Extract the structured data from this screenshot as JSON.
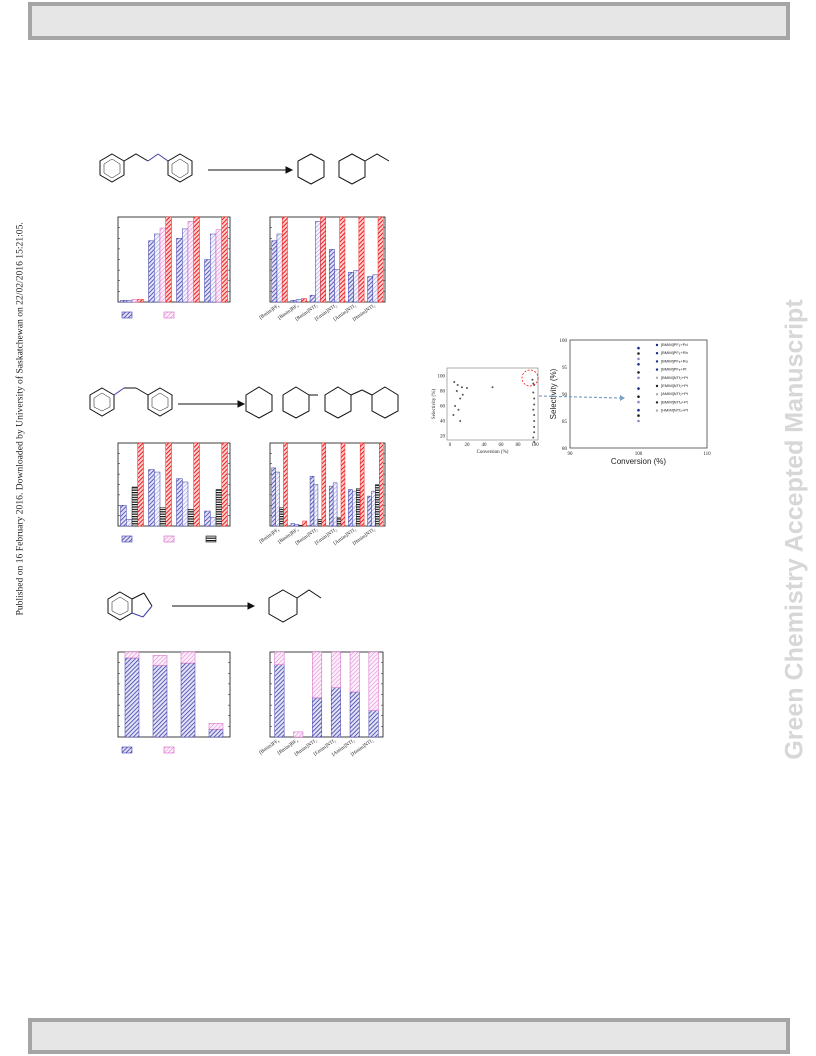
{
  "side_note": "Published on 16 February 2016. Downloaded by University of Saskatchewan on 22/02/2016 15:21:05.",
  "watermark": "Green Chemistry Accepted Manuscript",
  "colors": {
    "blue": "#3c3caa",
    "pink": "#f0a8e0",
    "red": "#ee1c1c",
    "black": "#111111"
  },
  "chart_data": [
    {
      "type": "bar",
      "panel": "a-left",
      "groups": 4,
      "series": [
        {
          "pattern": "blue",
          "values": [
            2,
            72,
            75,
            50
          ]
        },
        {
          "pattern": "blue-light",
          "values": [
            2,
            80,
            86,
            80
          ]
        },
        {
          "pattern": "pink",
          "values": [
            3,
            87,
            95,
            85
          ]
        },
        {
          "pattern": "red",
          "values": [
            3,
            100,
            100,
            100
          ]
        }
      ]
    },
    {
      "type": "bar",
      "panel": "a-right",
      "categories": [
        "[Bmim]PF₆",
        "[Bmim]BF₄",
        "[Bmim]NTf₂",
        "[Emim]NTf₂",
        "[Amim]NTf₂",
        "[Hmim]NTf₂"
      ],
      "series": [
        {
          "pattern": "blue",
          "values": [
            72,
            2,
            8,
            62,
            35,
            30
          ]
        },
        {
          "pattern": "blue-light",
          "values": [
            80,
            3,
            95,
            38,
            37,
            32
          ]
        },
        {
          "pattern": "red",
          "values": [
            100,
            4,
            100,
            100,
            100,
            100
          ]
        }
      ]
    },
    {
      "type": "bar",
      "panel": "b-left",
      "groups": 4,
      "series": [
        {
          "pattern": "blue",
          "values": [
            25,
            68,
            57,
            18
          ]
        },
        {
          "pattern": "blue-light",
          "values": [
            8,
            65,
            53,
            10
          ]
        },
        {
          "pattern": "black",
          "values": [
            47,
            22,
            20,
            44
          ]
        },
        {
          "pattern": "red",
          "values": [
            100,
            100,
            100,
            100
          ]
        }
      ]
    },
    {
      "type": "bar",
      "panel": "b-right",
      "categories": [
        "[Bmim]PF₆",
        "[Bmim]BF₄",
        "[Bmim]NTf₂",
        "[Emim]NTf₂",
        "[Amim]NTf₂",
        "[Hmim]NTf₂"
      ],
      "series": [
        {
          "pattern": "blue",
          "values": [
            70,
            3,
            60,
            48,
            44,
            36
          ]
        },
        {
          "pattern": "blue-light",
          "values": [
            65,
            2,
            50,
            52,
            42,
            42
          ]
        },
        {
          "pattern": "black",
          "values": [
            22,
            1,
            8,
            10,
            45,
            50
          ]
        },
        {
          "pattern": "red",
          "values": [
            100,
            6,
            100,
            100,
            100,
            100
          ]
        }
      ]
    },
    {
      "type": "bar",
      "panel": "c-left",
      "groups": 4,
      "stacked": true,
      "series": [
        {
          "pattern": "blue",
          "values": [
            93,
            84,
            87,
            9
          ]
        },
        {
          "pattern": "pink",
          "values": [
            7,
            12,
            13,
            7
          ]
        }
      ]
    },
    {
      "type": "bar",
      "panel": "c-right",
      "stacked": true,
      "categories": [
        "[Bmim]PF₆",
        "[Bmim]BF₄",
        "[Bmim]NTf₂",
        "[Emim]NTf₂",
        "[Amim]NTf₂",
        "[Hmim]NTf₂"
      ],
      "series": [
        {
          "pattern": "blue",
          "values": [
            85,
            0,
            46,
            58,
            53,
            31
          ]
        },
        {
          "pattern": "pink",
          "values": [
            15,
            6,
            54,
            42,
            47,
            69
          ]
        }
      ]
    },
    {
      "type": "scatter",
      "panel": "d-small",
      "xlabel": "Conversion (%)",
      "ylabel": "Selectivity (%)",
      "xticks": [
        "0",
        "20",
        "40",
        "60",
        "80",
        "100"
      ],
      "yticks": [
        "20",
        "40",
        "60",
        "80",
        "100"
      ],
      "xlim": [
        0,
        100
      ],
      "ylim": [
        0,
        100
      ]
    },
    {
      "type": "scatter",
      "panel": "d-zoom",
      "xlabel": "Conversion (%)",
      "ylabel": "Selectivity (%)",
      "xlim": [
        90,
        110
      ],
      "ylim": [
        80,
        100
      ],
      "xticks": [
        "90",
        "100",
        "110"
      ],
      "yticks": [
        "80",
        "85",
        "90",
        "95",
        "100"
      ],
      "legend": [
        "[BMIM]PF₆+Pd",
        "[BMIM]PF₆+Rh",
        "[BMIM]PF₆+Ru",
        "[BMIM]PF₆+Pt",
        "[BMIM]NTf₂+Pt",
        "[EMIM]NTf₂+Pt",
        "[AMIM]NTf₂+Pt",
        "[BMIM]NTf₂+Pt",
        "[HMIM]NTf₂+Pt"
      ]
    }
  ]
}
